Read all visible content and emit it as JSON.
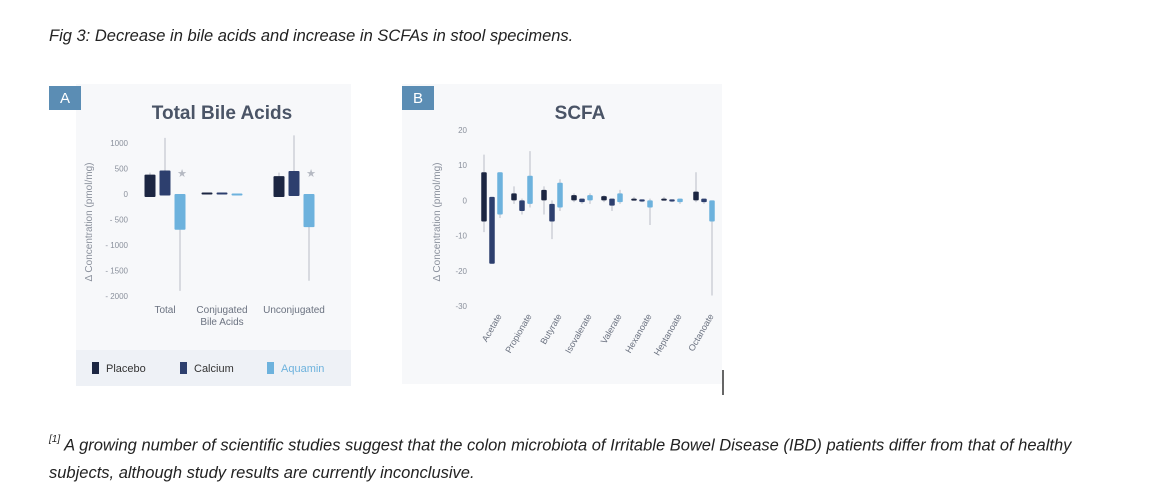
{
  "caption": "Fig 3: Decrease in bile acids and increase in  SCFAs in stool specimens.",
  "footnote": {
    "ref": "[1]",
    "text": " A growing number of scientific studies suggest that the colon microbiota of Irritable Bowel Disease (IBD) patients differ from that of healthy subjects, although study results are currently inconclusive."
  },
  "colors": {
    "placebo": "#1c2642",
    "calcium": "#2d3f6e",
    "aquamin": "#6db2dd",
    "panel_bg": "#f7f8fa",
    "badge": "#5b8db4"
  },
  "legend": [
    {
      "name": "Placebo",
      "color": "#1c2642"
    },
    {
      "name": "Calcium",
      "color": "#2d3f6e"
    },
    {
      "name": "Aquamin",
      "color": "#6db2dd"
    }
  ],
  "chart_data": [
    {
      "type": "box",
      "badge": "A",
      "title": "Total Bile Acids",
      "ylabel": "Δ Concentration (pmol/mg)",
      "ylim": [
        -2000,
        1000
      ],
      "yticks": [
        1000,
        500,
        0,
        -500,
        -1000,
        -1500,
        -2000
      ],
      "ytick_labels": [
        "1000",
        "500",
        "0",
        "- 500",
        "- 1000",
        "- 1500",
        "- 2000"
      ],
      "categories": [
        "Total",
        "Conjugated Bile Acids",
        "Unconjugated"
      ],
      "category_lines": [
        [
          "Total"
        ],
        [
          "Conjugated",
          "Bile Acids"
        ],
        [
          "Unconjugated"
        ]
      ],
      "series": [
        {
          "name": "Placebo",
          "boxes": [
            {
              "q1": -60,
              "q3": 380,
              "wlo": -60,
              "whi": 420
            },
            {
              "q1": 0,
              "q3": 30,
              "wlo": 0,
              "whi": 30
            },
            {
              "q1": -60,
              "q3": 350,
              "wlo": -60,
              "whi": 420
            }
          ]
        },
        {
          "name": "Calcium",
          "boxes": [
            {
              "q1": -30,
              "q3": 460,
              "wlo": -30,
              "whi": 1100
            },
            {
              "q1": 0,
              "q3": 30,
              "wlo": 0,
              "whi": 30
            },
            {
              "q1": -40,
              "q3": 450,
              "wlo": -40,
              "whi": 1150
            }
          ]
        },
        {
          "name": "Aquamin",
          "boxes": [
            {
              "q1": -700,
              "q3": 0,
              "wlo": -1900,
              "whi": 0
            },
            {
              "q1": -30,
              "q3": 10,
              "wlo": -30,
              "whi": 10
            },
            {
              "q1": -650,
              "q3": 0,
              "wlo": -1700,
              "whi": 0
            }
          ]
        }
      ],
      "significance": [
        {
          "category": "Total",
          "symbol": "★"
        },
        {
          "category": "Unconjugated",
          "symbol": "★"
        }
      ]
    },
    {
      "type": "box",
      "badge": "B",
      "title": "SCFA",
      "ylabel": "Δ Concentration (pmol/mg)",
      "ylim": [
        -30,
        20
      ],
      "yticks": [
        20,
        10,
        0,
        -10,
        -20,
        -30
      ],
      "ytick_labels": [
        "20",
        "10",
        "0",
        "-10",
        "-20",
        "-30"
      ],
      "categories": [
        "Acetate",
        "Propionate",
        "Butyrate",
        "Isovalerate",
        "Valerate",
        "Hexanoate",
        "Heptanoate",
        "Octanoate"
      ],
      "series": [
        {
          "name": "Placebo",
          "boxes": [
            {
              "q1": -6,
              "q3": 8,
              "wlo": -9,
              "whi": 13
            },
            {
              "q1": 0,
              "q3": 2,
              "wlo": -1,
              "whi": 4
            },
            {
              "q1": 0,
              "q3": 3,
              "wlo": -4,
              "whi": 4
            },
            {
              "q1": 0,
              "q3": 1.5,
              "wlo": -0.5,
              "whi": 2
            },
            {
              "q1": 0,
              "q3": 1.2,
              "wlo": -0.5,
              "whi": 1.5
            },
            {
              "q1": 0,
              "q3": 0.5,
              "wlo": 0,
              "whi": 1
            },
            {
              "q1": 0,
              "q3": 0.5,
              "wlo": 0,
              "whi": 1
            },
            {
              "q1": 0,
              "q3": 2.5,
              "wlo": -0.5,
              "whi": 8
            }
          ]
        },
        {
          "name": "Calcium",
          "boxes": [
            {
              "q1": -18,
              "q3": 1,
              "wlo": -18,
              "whi": 1
            },
            {
              "q1": -3,
              "q3": 0,
              "wlo": -4,
              "whi": 0.5
            },
            {
              "q1": -6,
              "q3": -1,
              "wlo": -11,
              "whi": 0
            },
            {
              "q1": -0.5,
              "q3": 0.5,
              "wlo": -1,
              "whi": 0.5
            },
            {
              "q1": -1.5,
              "q3": 0.5,
              "wlo": -3,
              "whi": 0.5
            },
            {
              "q1": -0.3,
              "q3": 0.3,
              "wlo": -0.5,
              "whi": 0.3
            },
            {
              "q1": -0.3,
              "q3": 0.3,
              "wlo": -0.5,
              "whi": 0.3
            },
            {
              "q1": -0.5,
              "q3": 0.5,
              "wlo": -1,
              "whi": 0.5
            }
          ]
        },
        {
          "name": "Aquamin",
          "boxes": [
            {
              "q1": -4,
              "q3": 8,
              "wlo": -5,
              "whi": 8
            },
            {
              "q1": -1,
              "q3": 7,
              "wlo": -2,
              "whi": 14
            },
            {
              "q1": -2,
              "q3": 5,
              "wlo": -3,
              "whi": 6
            },
            {
              "q1": 0,
              "q3": 1.5,
              "wlo": -1,
              "whi": 2
            },
            {
              "q1": -0.5,
              "q3": 2,
              "wlo": -1,
              "whi": 3
            },
            {
              "q1": -2,
              "q3": 0,
              "wlo": -7,
              "whi": 0.5
            },
            {
              "q1": -0.5,
              "q3": 0.5,
              "wlo": -1,
              "whi": 0.5
            },
            {
              "q1": -6,
              "q3": 0,
              "wlo": -27,
              "whi": 0
            }
          ]
        }
      ]
    }
  ]
}
